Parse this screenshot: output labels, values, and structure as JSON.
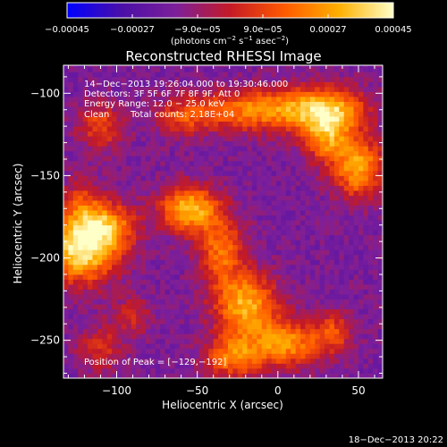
{
  "chart_data": {
    "type": "heatmap",
    "title": "Reconstructed RHESSI Image",
    "xlabel": "Heliocentric X (arcsec)",
    "ylabel": "Heliocentric Y (arcsec)",
    "xlim": [
      -133,
      65
    ],
    "ylim": [
      -273,
      -83
    ],
    "x_ticks": [
      -100,
      -50,
      0,
      50
    ],
    "x_tick_labels": [
      "−100",
      "−50",
      "0",
      "50"
    ],
    "y_ticks": [
      -250,
      -200,
      -150,
      -100
    ],
    "y_tick_labels": [
      "−250",
      "−200",
      "−150",
      "−100"
    ],
    "colorbar": {
      "range": [
        -0.00045,
        0.00045
      ],
      "ticks": [
        -0.00045,
        -0.00027,
        -9e-05,
        9e-05,
        0.00027,
        0.00045
      ],
      "tick_labels": [
        "−0.00045",
        "−0.00027",
        "−9.0e−05",
        "9.0e−05",
        "0.00027",
        "0.00045"
      ],
      "unit_parts": [
        "(photons cm",
        "−2",
        " s",
        "−1",
        " asec",
        "−2",
        ")"
      ],
      "colormap": [
        "#0000ff",
        "#4a0fa8",
        "#7d1f9a",
        "#c41a26",
        "#ff5a00",
        "#ffb000",
        "#ffffc8"
      ]
    },
    "annotations": {
      "time_range": "14−Dec−2013 19:26:04.000 to 19:30:46.000",
      "detectors": "Detectors: 3F 5F 6F 7F 8F 9F, Att 0",
      "energy": "Energy Range: 12.0 − 25.0 keV",
      "method": "Clean",
      "total_counts": "Total counts: 2.18E+04",
      "peak": "Position of Peak = [−129,−192]"
    },
    "peak_position": [
      -129,
      -192
    ],
    "sources": [
      {
        "x": -122,
        "y": -195,
        "sx": 16,
        "sy": 14,
        "amp": 0.00056
      },
      {
        "x": -105,
        "y": -180,
        "sx": 12,
        "sy": 10,
        "amp": 0.00034
      },
      {
        "x": -122,
        "y": -168,
        "sx": 9,
        "sy": 12,
        "amp": 0.00022
      },
      {
        "x": -55,
        "y": -170,
        "sx": 13,
        "sy": 10,
        "amp": 0.00048
      },
      {
        "x": -35,
        "y": -195,
        "sx": 10,
        "sy": 14,
        "amp": 0.00034
      },
      {
        "x": -20,
        "y": -228,
        "sx": 14,
        "sy": 13,
        "amp": 0.00046
      },
      {
        "x": 5,
        "y": -252,
        "sx": 16,
        "sy": 10,
        "amp": 0.0004
      },
      {
        "x": -28,
        "y": -260,
        "sx": 12,
        "sy": 9,
        "amp": 0.00036
      },
      {
        "x": -10,
        "y": -110,
        "sx": 30,
        "sy": 9,
        "amp": 0.0004
      },
      {
        "x": 32,
        "y": -110,
        "sx": 16,
        "sy": 10,
        "amp": 0.00038
      },
      {
        "x": 50,
        "y": -145,
        "sx": 11,
        "sy": 13,
        "amp": 0.00044
      },
      {
        "x": 30,
        "y": -128,
        "sx": 10,
        "sy": 10,
        "amp": 0.00034
      },
      {
        "x": -110,
        "y": -120,
        "sx": 10,
        "sy": 10,
        "amp": 0.00026
      },
      {
        "x": -60,
        "y": -115,
        "sx": 12,
        "sy": 8,
        "amp": 0.0002
      },
      {
        "x": -90,
        "y": -235,
        "sx": 9,
        "sy": 8,
        "amp": 0.00018
      },
      {
        "x": -110,
        "y": -255,
        "sx": 10,
        "sy": 10,
        "amp": 0.0002
      },
      {
        "x": 35,
        "y": -245,
        "sx": 8,
        "sy": 9,
        "amp": 0.00024
      }
    ],
    "baseline": -0.00016,
    "grid": false
  },
  "footer": {
    "date": "18−Dec−2013 20:22"
  }
}
